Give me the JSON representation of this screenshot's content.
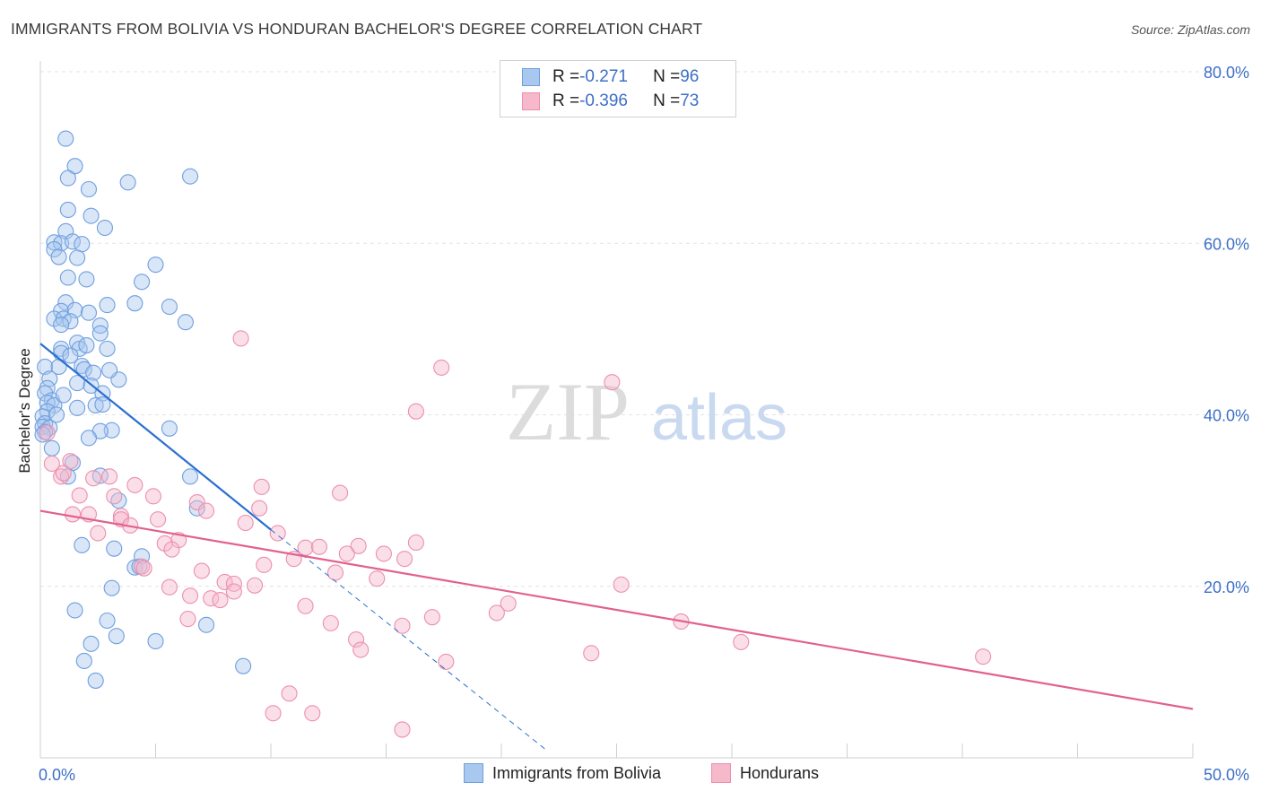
{
  "title": "IMMIGRANTS FROM BOLIVIA VS HONDURAN BACHELOR'S DEGREE CORRELATION CHART",
  "source": "Source: ZipAtlas.com",
  "watermark": {
    "zip": "ZIP",
    "atlas": "atlas"
  },
  "legend": {
    "rows": [
      {
        "r_label": "R = ",
        "r_value": "-0.271",
        "n_label": "N = ",
        "n_value": "96"
      },
      {
        "r_label": "R = ",
        "r_value": "-0.396",
        "n_label": "N = ",
        "n_value": "73"
      }
    ]
  },
  "bottom_legend": [
    "Immigrants from Bolivia",
    "Hondurans"
  ],
  "colors": {
    "blue_fill": "#a9c8ef",
    "blue_stroke": "#6f9fde",
    "blue_line": "#2b6fd0",
    "pink_fill": "#f6b8cb",
    "pink_stroke": "#ec8fae",
    "pink_line": "#e2608f",
    "axis_text": "#3d6fc7",
    "grid": "#e3e3e3"
  },
  "chart_data": {
    "type": "scatter",
    "title": "IMMIGRANTS FROM BOLIVIA VS HONDURAN BACHELOR'S DEGREE CORRELATION CHART",
    "xlabel": "",
    "ylabel": "Bachelor's Degree",
    "xlim": [
      0,
      50
    ],
    "ylim": [
      0,
      80
    ],
    "x_tick_labels": [
      "0.0%",
      "50.0%"
    ],
    "y_ticks": [
      20,
      40,
      60,
      80
    ],
    "y_tick_labels": [
      "20.0%",
      "40.0%",
      "60.0%",
      "80.0%"
    ],
    "series": [
      {
        "name": "Immigrants from Bolivia",
        "R": -0.271,
        "N": 96,
        "trend": {
          "x": [
            0,
            10
          ],
          "y": [
            48.3,
            26.6
          ]
        },
        "trend_dashed": {
          "x": [
            10,
            22
          ],
          "y": [
            26.6,
            0.8
          ]
        },
        "points": [
          [
            1.1,
            72.2
          ],
          [
            1.5,
            69.0
          ],
          [
            1.2,
            67.6
          ],
          [
            2.1,
            66.3
          ],
          [
            3.8,
            67.1
          ],
          [
            6.5,
            67.8
          ],
          [
            1.2,
            63.9
          ],
          [
            2.2,
            63.2
          ],
          [
            2.8,
            61.8
          ],
          [
            1.1,
            61.4
          ],
          [
            0.6,
            60.1
          ],
          [
            0.9,
            60.0
          ],
          [
            1.4,
            60.2
          ],
          [
            1.8,
            59.9
          ],
          [
            0.6,
            59.3
          ],
          [
            0.8,
            58.4
          ],
          [
            1.6,
            58.3
          ],
          [
            5.0,
            57.5
          ],
          [
            1.2,
            56.0
          ],
          [
            2.0,
            55.8
          ],
          [
            4.4,
            55.5
          ],
          [
            1.1,
            53.1
          ],
          [
            4.1,
            53.0
          ],
          [
            2.9,
            52.8
          ],
          [
            5.6,
            52.6
          ],
          [
            0.9,
            52.1
          ],
          [
            1.5,
            52.2
          ],
          [
            2.1,
            51.9
          ],
          [
            0.6,
            51.2
          ],
          [
            1.0,
            51.2
          ],
          [
            1.3,
            50.9
          ],
          [
            6.3,
            50.8
          ],
          [
            0.9,
            50.5
          ],
          [
            2.6,
            50.4
          ],
          [
            2.6,
            49.5
          ],
          [
            1.6,
            48.4
          ],
          [
            0.9,
            47.7
          ],
          [
            2.9,
            47.7
          ],
          [
            1.7,
            47.7
          ],
          [
            0.9,
            47.2
          ],
          [
            1.3,
            46.9
          ],
          [
            0.2,
            45.6
          ],
          [
            0.8,
            45.6
          ],
          [
            1.8,
            45.7
          ],
          [
            1.9,
            45.3
          ],
          [
            2.3,
            44.9
          ],
          [
            0.4,
            44.2
          ],
          [
            3.4,
            44.1
          ],
          [
            1.6,
            43.7
          ],
          [
            2.2,
            43.4
          ],
          [
            0.3,
            43.1
          ],
          [
            0.2,
            42.5
          ],
          [
            2.7,
            42.5
          ],
          [
            0.5,
            41.7
          ],
          [
            0.3,
            41.4
          ],
          [
            0.6,
            41.1
          ],
          [
            2.4,
            41.1
          ],
          [
            2.7,
            41.2
          ],
          [
            1.6,
            40.8
          ],
          [
            0.3,
            40.4
          ],
          [
            0.1,
            39.8
          ],
          [
            0.2,
            39.0
          ],
          [
            0.1,
            38.6
          ],
          [
            0.4,
            38.5
          ],
          [
            5.6,
            38.4
          ],
          [
            3.1,
            38.2
          ],
          [
            2.6,
            38.1
          ],
          [
            0.2,
            38.0
          ],
          [
            0.1,
            37.7
          ],
          [
            2.1,
            37.3
          ],
          [
            0.5,
            36.1
          ],
          [
            1.4,
            34.4
          ],
          [
            1.2,
            32.8
          ],
          [
            2.6,
            32.9
          ],
          [
            6.5,
            32.8
          ],
          [
            3.4,
            30.0
          ],
          [
            6.8,
            29.1
          ],
          [
            1.8,
            24.8
          ],
          [
            3.2,
            24.4
          ],
          [
            4.4,
            23.5
          ],
          [
            4.1,
            22.2
          ],
          [
            3.1,
            19.8
          ],
          [
            1.5,
            17.2
          ],
          [
            2.9,
            16.0
          ],
          [
            7.2,
            15.5
          ],
          [
            3.3,
            14.2
          ],
          [
            5.0,
            13.6
          ],
          [
            2.2,
            13.3
          ],
          [
            1.9,
            11.3
          ],
          [
            8.8,
            10.7
          ],
          [
            2.4,
            9.0
          ],
          [
            4.3,
            22.3
          ],
          [
            2.0,
            48.1
          ],
          [
            3.0,
            45.2
          ],
          [
            0.7,
            40.0
          ],
          [
            1.0,
            42.3
          ]
        ]
      },
      {
        "name": "Hondurans",
        "R": -0.396,
        "N": 73,
        "trend": {
          "x": [
            0,
            50
          ],
          "y": [
            28.8,
            5.7
          ]
        },
        "points": [
          [
            0.5,
            34.3
          ],
          [
            1.3,
            34.6
          ],
          [
            0.9,
            32.8
          ],
          [
            2.3,
            32.6
          ],
          [
            3.0,
            32.8
          ],
          [
            4.1,
            31.8
          ],
          [
            9.6,
            31.6
          ],
          [
            13.0,
            30.9
          ],
          [
            1.7,
            30.6
          ],
          [
            3.2,
            30.5
          ],
          [
            4.9,
            30.5
          ],
          [
            6.8,
            29.8
          ],
          [
            7.2,
            28.8
          ],
          [
            9.5,
            29.1
          ],
          [
            1.4,
            28.4
          ],
          [
            2.1,
            28.4
          ],
          [
            3.5,
            28.2
          ],
          [
            3.5,
            27.8
          ],
          [
            5.1,
            27.8
          ],
          [
            3.9,
            27.1
          ],
          [
            8.9,
            27.4
          ],
          [
            2.5,
            26.2
          ],
          [
            10.3,
            26.2
          ],
          [
            6.0,
            25.4
          ],
          [
            5.4,
            25.0
          ],
          [
            16.3,
            25.1
          ],
          [
            11.5,
            24.5
          ],
          [
            12.1,
            24.6
          ],
          [
            13.8,
            24.7
          ],
          [
            5.7,
            24.3
          ],
          [
            13.3,
            23.8
          ],
          [
            14.9,
            23.8
          ],
          [
            15.8,
            23.2
          ],
          [
            11.0,
            23.2
          ],
          [
            9.7,
            22.5
          ],
          [
            4.4,
            22.3
          ],
          [
            4.5,
            22.1
          ],
          [
            7.0,
            21.8
          ],
          [
            12.8,
            21.6
          ],
          [
            14.6,
            20.9
          ],
          [
            8.0,
            20.5
          ],
          [
            8.4,
            20.3
          ],
          [
            9.3,
            20.1
          ],
          [
            5.6,
            19.9
          ],
          [
            8.4,
            19.4
          ],
          [
            25.2,
            20.2
          ],
          [
            6.5,
            18.9
          ],
          [
            7.4,
            18.6
          ],
          [
            7.8,
            18.4
          ],
          [
            20.3,
            18.0
          ],
          [
            11.5,
            17.7
          ],
          [
            19.8,
            16.9
          ],
          [
            6.4,
            16.2
          ],
          [
            17.0,
            16.4
          ],
          [
            27.8,
            15.9
          ],
          [
            12.6,
            15.7
          ],
          [
            15.7,
            15.4
          ],
          [
            13.7,
            13.8
          ],
          [
            30.4,
            13.5
          ],
          [
            13.9,
            12.6
          ],
          [
            23.9,
            12.2
          ],
          [
            40.9,
            11.8
          ],
          [
            17.6,
            11.2
          ],
          [
            10.8,
            7.5
          ],
          [
            10.1,
            5.2
          ],
          [
            11.8,
            5.2
          ],
          [
            15.7,
            3.3
          ],
          [
            8.7,
            48.9
          ],
          [
            17.4,
            45.5
          ],
          [
            24.8,
            43.8
          ],
          [
            16.3,
            40.4
          ],
          [
            0.3,
            37.9
          ],
          [
            1.0,
            33.2
          ]
        ]
      }
    ]
  }
}
